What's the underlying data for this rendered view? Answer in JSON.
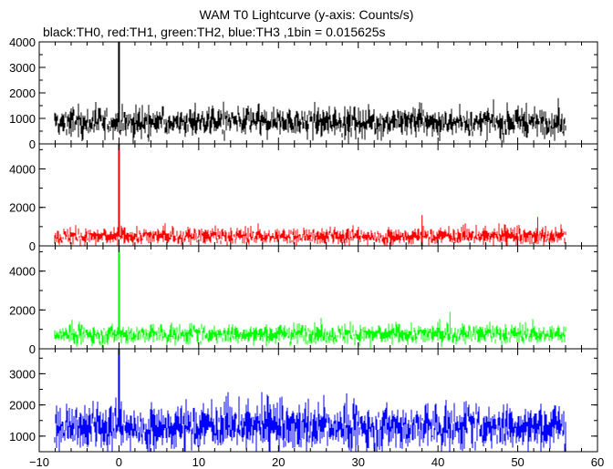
{
  "chart_data": {
    "type": "line",
    "title": "WAM T0 Lightcurve (y-axis: Counts/s)",
    "subtitle": "black:TH0, red:TH1, green:TH2, blue:TH3 ,1bin = 0.015625s",
    "xlabel": "",
    "ylabel": "",
    "xlim": [
      -10,
      60
    ],
    "x_ticks": [
      -10,
      0,
      10,
      20,
      30,
      40,
      50,
      60
    ],
    "x_tick_labels": [
      "−10",
      "0",
      "10",
      "20",
      "30",
      "40",
      "50",
      "60"
    ],
    "x_start": -8,
    "x_end": 56,
    "bin_seconds": 0.015625,
    "series": [
      {
        "name": "TH0",
        "color": "#000000",
        "ylim": [
          0,
          4000
        ],
        "y_ticks": [
          0,
          1000,
          2000,
          3000,
          4000
        ],
        "y_tick_labels": [
          "0",
          "1000",
          "2000",
          "3000",
          "4000"
        ],
        "mean": 850,
        "noise": 260,
        "spikes": [
          {
            "x": 0,
            "y": 4200
          }
        ]
      },
      {
        "name": "TH1",
        "color": "#ff0000",
        "ylim": [
          0,
          5300
        ],
        "y_ticks": [
          0,
          2000,
          4000
        ],
        "y_tick_labels": [
          "0",
          "2000",
          "4000"
        ],
        "mean": 500,
        "noise": 200,
        "spikes": [
          {
            "x": 0,
            "y": 5300
          },
          {
            "x": 38,
            "y": 1600
          },
          {
            "x": 52.5,
            "y": 1500
          }
        ]
      },
      {
        "name": "TH2",
        "color": "#00ff00",
        "ylim": [
          0,
          5300
        ],
        "y_ticks": [
          0,
          2000,
          4000
        ],
        "y_tick_labels": [
          "0",
          "2000",
          "4000"
        ],
        "mean": 750,
        "noise": 230,
        "spikes": [
          {
            "x": 0,
            "y": 5300
          },
          {
            "x": 41.5,
            "y": 1900
          }
        ]
      },
      {
        "name": "TH3",
        "color": "#0000ff",
        "ylim": [
          500,
          3800
        ],
        "y_ticks": [
          1000,
          2000,
          3000
        ],
        "y_tick_labels": [
          "1000",
          "2000",
          "3000"
        ],
        "mean": 1300,
        "noise": 330,
        "spikes": [
          {
            "x": 0,
            "y": 3800
          }
        ]
      }
    ]
  }
}
